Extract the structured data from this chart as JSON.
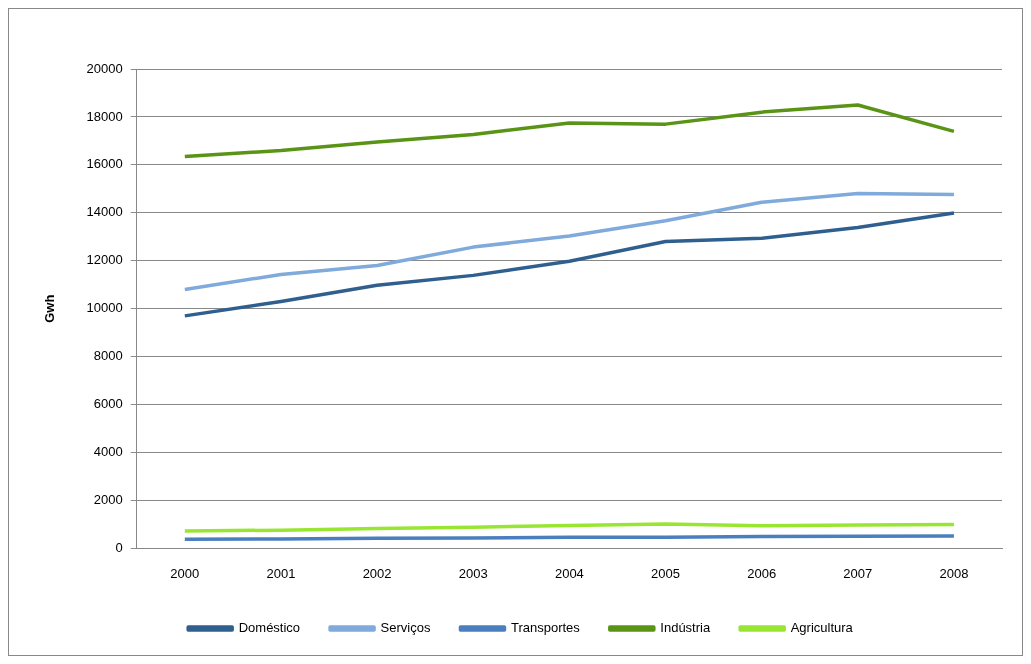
{
  "chart_data": {
    "type": "line",
    "ylabel": "Gwh",
    "categories": [
      "2000",
      "2001",
      "2002",
      "2003",
      "2004",
      "2005",
      "2006",
      "2007",
      "2008"
    ],
    "series": [
      {
        "name": "Doméstico",
        "color": "#2f5f8f",
        "values": [
          9700,
          10300,
          10980,
          11390,
          11980,
          12800,
          12940,
          13390,
          13990
        ]
      },
      {
        "name": "Serviços",
        "color": "#7faadb",
        "values": [
          10800,
          11430,
          11800,
          12570,
          13030,
          13670,
          14440,
          14810,
          14760
        ]
      },
      {
        "name": "Transportes",
        "color": "#4a7fbf",
        "values": [
          380,
          390,
          420,
          430,
          460,
          470,
          500,
          510,
          520
        ]
      },
      {
        "name": "Indústria",
        "color": "#5a9416",
        "values": [
          16350,
          16600,
          16950,
          17270,
          17750,
          17700,
          18200,
          18500,
          17400
        ]
      },
      {
        "name": "Agricultura",
        "color": "#99e632",
        "values": [
          730,
          760,
          830,
          880,
          960,
          1020,
          940,
          980,
          1000
        ]
      }
    ],
    "ylim": [
      0,
      20000
    ],
    "yticks": [
      0,
      2000,
      4000,
      6000,
      8000,
      10000,
      12000,
      14000,
      16000,
      18000,
      20000
    ],
    "grid": "y",
    "legend": "bottom",
    "marker": "none",
    "line_style": "solid"
  }
}
